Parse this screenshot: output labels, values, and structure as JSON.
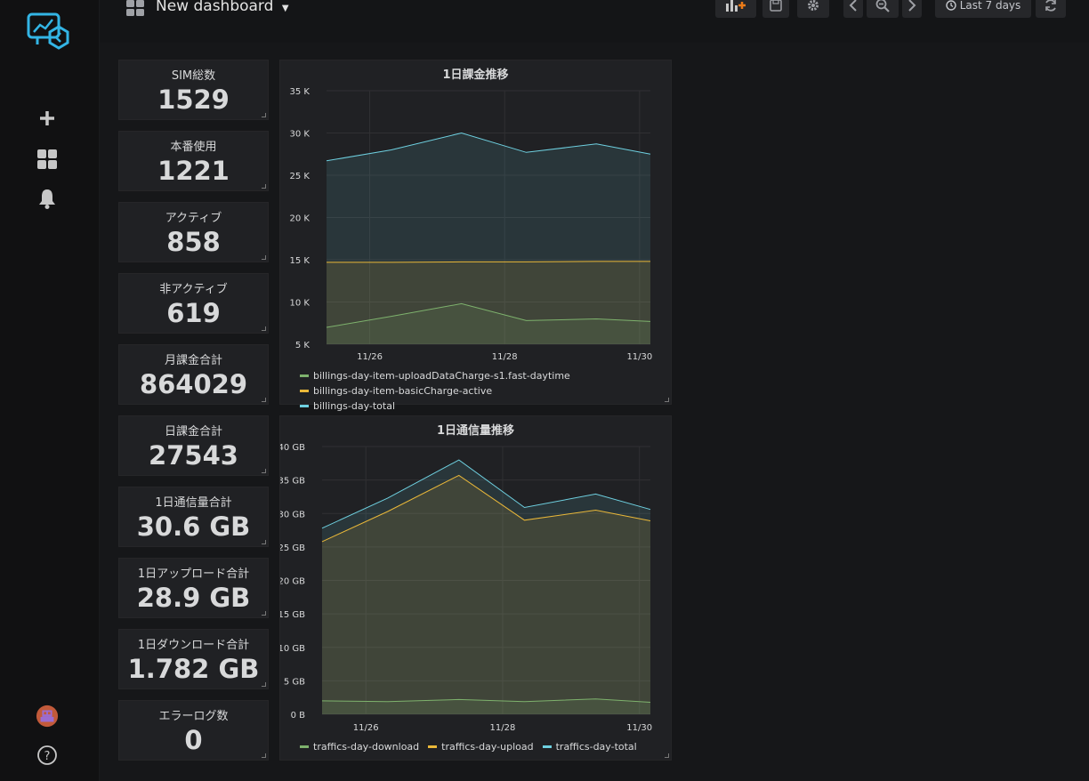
{
  "sidebar": {
    "logo": "grafana-logo-icon",
    "items": [
      {
        "icon": "plus-icon",
        "name": "create"
      },
      {
        "icon": "dashboards-icon",
        "name": "dashboards"
      },
      {
        "icon": "bell-icon",
        "name": "alerting"
      }
    ],
    "bottom": [
      {
        "icon": "avatar-icon",
        "name": "profile"
      },
      {
        "icon": "help-icon",
        "name": "help"
      }
    ]
  },
  "navbar": {
    "title": "New dashboard",
    "time_range": "Last 7 days"
  },
  "stats": [
    {
      "title": "SIM総数",
      "value": "1529"
    },
    {
      "title": "本番使用",
      "value": "1221"
    },
    {
      "title": "アクティブ",
      "value": "858"
    },
    {
      "title": "非アクティブ",
      "value": "619"
    },
    {
      "title": "月課金合計",
      "value": "864029"
    },
    {
      "title": "日課金合計",
      "value": "27543"
    },
    {
      "title": "1日通信量合計",
      "value": "30.6 GB"
    },
    {
      "title": "1日アップロード合計",
      "value": "28.9 GB"
    },
    {
      "title": "1日ダウンロード合計",
      "value": "1.782 GB"
    },
    {
      "title": "エラーログ数",
      "value": "0"
    }
  ],
  "colors": {
    "green": "#7eb26d",
    "orange": "#eab839",
    "cyan": "#6ed0e0"
  },
  "chart_data": [
    {
      "type": "area",
      "title": "1日課金推移",
      "ylim": [
        5000,
        35000
      ],
      "y_ticks": [
        5000,
        10000,
        15000,
        20000,
        25000,
        30000,
        35000
      ],
      "y_tick_labels": [
        "5 K",
        "10 K",
        "15 K",
        "20 K",
        "25 K",
        "30 K",
        "35 K"
      ],
      "x_range": [
        24.6,
        27.0
      ],
      "x_ticks": [
        24.92,
        25.92,
        26.92
      ],
      "x_tick_labels": [
        "11/26",
        "11/28",
        "11/30"
      ],
      "x": [
        24.6,
        25.08,
        25.6,
        26.08,
        26.6,
        27.0
      ],
      "grid": true,
      "legend_position": "bottom",
      "series": [
        {
          "name": "billings-day-item-uploadDataCharge-s1.fast-daytime",
          "color": "#7eb26d",
          "values": [
            7000,
            8300,
            9800,
            7800,
            8000,
            7700
          ]
        },
        {
          "name": "billings-day-item-basicCharge-active",
          "color": "#eab839",
          "values": [
            14700,
            14700,
            14750,
            14750,
            14800,
            14800
          ]
        },
        {
          "name": "billings-day-total",
          "color": "#6ed0e0",
          "values": [
            26700,
            28000,
            30000,
            27700,
            28700,
            27500
          ]
        }
      ]
    },
    {
      "type": "area",
      "title": "1日通信量推移",
      "ylim": [
        0,
        40
      ],
      "y_ticks": [
        0,
        5,
        10,
        15,
        20,
        25,
        30,
        35,
        40
      ],
      "y_tick_labels": [
        "0 B",
        "5 GB",
        "10 GB",
        "15 GB",
        "20 GB",
        "25 GB",
        "30 GB",
        "35 GB",
        "40 GB"
      ],
      "x_range": [
        24.6,
        27.0
      ],
      "x_ticks": [
        24.92,
        25.92,
        26.92
      ],
      "x_tick_labels": [
        "11/26",
        "11/28",
        "11/30"
      ],
      "x": [
        24.6,
        25.08,
        25.6,
        26.08,
        26.6,
        27.0
      ],
      "grid": true,
      "legend_position": "bottom",
      "series": [
        {
          "name": "traffics-day-download",
          "color": "#7eb26d",
          "values": [
            2.0,
            1.9,
            2.2,
            1.9,
            2.3,
            1.8
          ]
        },
        {
          "name": "traffics-day-upload",
          "color": "#eab839",
          "values": [
            25.8,
            30.3,
            35.7,
            29.0,
            30.5,
            28.9
          ]
        },
        {
          "name": "traffics-day-total",
          "color": "#6ed0e0",
          "values": [
            27.8,
            32.3,
            38.0,
            30.9,
            32.9,
            30.6
          ]
        }
      ]
    }
  ]
}
